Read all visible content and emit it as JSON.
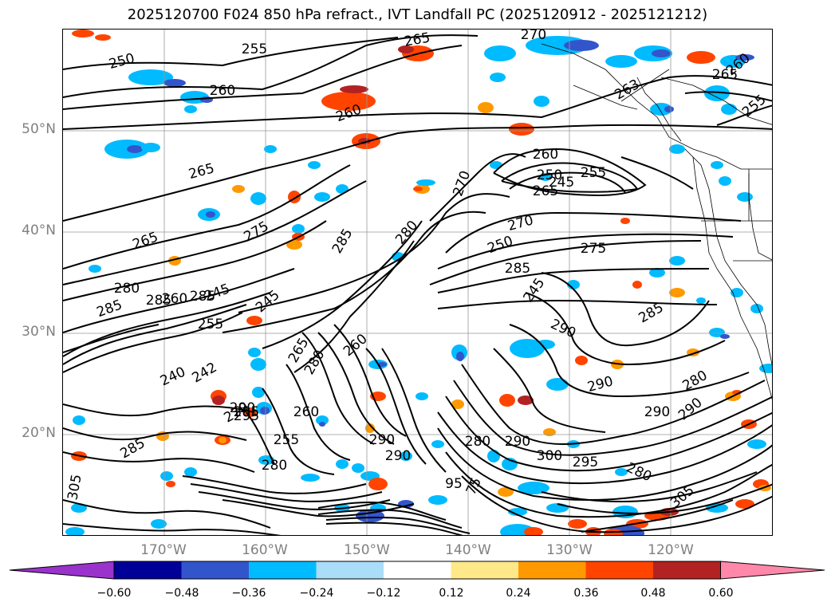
{
  "title": "2025120700 F024 850 hPa refract., IVT Landfall PC (2025120912 - 2025121212)",
  "lat_labels": [
    "50°N",
    "40°N",
    "30°N",
    "20°N"
  ],
  "lon_labels": [
    "170°W",
    "160°W",
    "150°W",
    "140°W",
    "130°W",
    "120°W"
  ],
  "colorbar": {
    "ticks": [
      "−0.60",
      "−0.48",
      "−0.36",
      "−0.24",
      "−0.12",
      "0.12",
      "0.24",
      "0.36",
      "0.48",
      "0.60"
    ],
    "colors": [
      "#9933cc",
      "#000099",
      "#3355cc",
      "#00bbff",
      "#aaddf7",
      "#ffffff",
      "#ffe88a",
      "#ff9900",
      "#ff4400",
      "#b22222",
      "#ff88aa"
    ]
  },
  "contour_labels": [
    "250",
    "255",
    "260",
    "265",
    "270",
    "275",
    "280",
    "285",
    "290",
    "295",
    "300",
    "305",
    "240",
    "245"
  ],
  "map_labels": [
    {
      "t": "265"
    },
    {
      "t": "270"
    },
    {
      "t": "250"
    },
    {
      "t": "255"
    },
    {
      "t": "260"
    },
    {
      "t": "260"
    },
    {
      "t": "260"
    },
    {
      "t": "265"
    },
    {
      "t": "263"
    },
    {
      "t": "255"
    },
    {
      "t": "265"
    },
    {
      "t": "260"
    },
    {
      "t": "250"
    },
    {
      "t": "255"
    },
    {
      "t": "245"
    },
    {
      "t": "265"
    },
    {
      "t": "270"
    },
    {
      "t": "265"
    },
    {
      "t": "275"
    },
    {
      "t": "285"
    },
    {
      "t": "280"
    },
    {
      "t": "270"
    },
    {
      "t": "250"
    },
    {
      "t": "275"
    },
    {
      "t": "285"
    },
    {
      "t": "280"
    },
    {
      "t": "285"
    },
    {
      "t": "260"
    },
    {
      "t": "285"
    },
    {
      "t": "245"
    },
    {
      "t": "245"
    },
    {
      "t": "245"
    },
    {
      "t": "290"
    },
    {
      "t": "285"
    },
    {
      "t": "285"
    },
    {
      "t": "240"
    },
    {
      "t": "255"
    },
    {
      "t": "265"
    },
    {
      "t": "260"
    },
    {
      "t": "290"
    },
    {
      "t": "280"
    },
    {
      "t": "270"
    },
    {
      "t": "290"
    },
    {
      "t": "285"
    },
    {
      "t": "280"
    },
    {
      "t": "242"
    },
    {
      "t": "290"
    },
    {
      "t": "290"
    },
    {
      "t": "260"
    },
    {
      "t": "295"
    },
    {
      "t": "255"
    },
    {
      "t": "280"
    },
    {
      "t": "290"
    },
    {
      "t": "290"
    },
    {
      "t": "280"
    },
    {
      "t": "290"
    },
    {
      "t": "300"
    },
    {
      "t": "295"
    },
    {
      "t": "280"
    },
    {
      "t": "305"
    },
    {
      "t": "305"
    },
    {
      "t": "285"
    },
    {
      "t": "75"
    },
    {
      "t": "95"
    }
  ]
}
